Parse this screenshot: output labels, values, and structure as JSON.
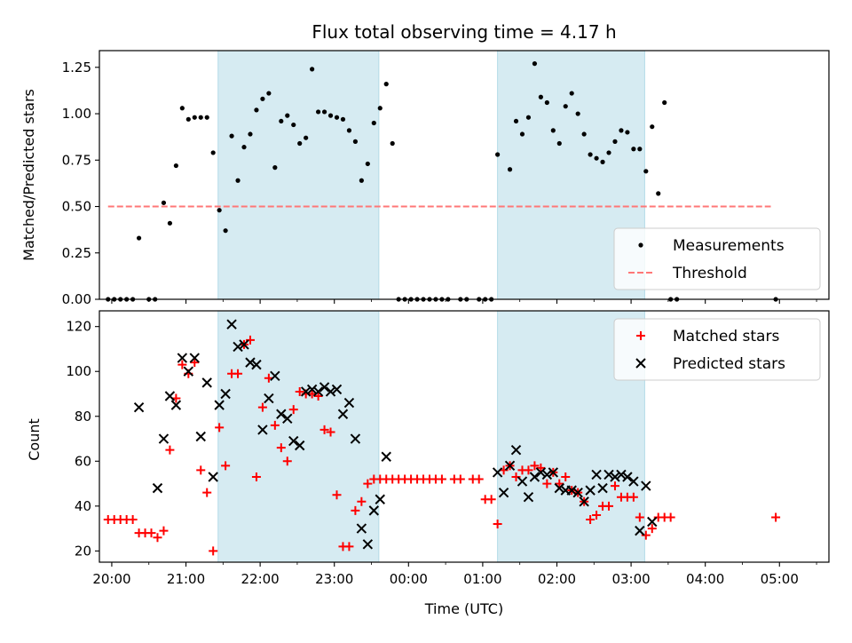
{
  "figure": {
    "title": "Flux total observing time = 4.17 h",
    "xlabel": "Time (UTC)"
  },
  "chart_data": [
    {
      "type": "scatter",
      "ylabel": "Matched/Predicted stars",
      "ylim": [
        0,
        1.34
      ],
      "yticks": [
        0.0,
        0.25,
        0.5,
        0.75,
        1.0,
        1.25
      ],
      "xlim": [
        "19:50",
        "05:40"
      ],
      "xticks": [
        "20:00",
        "21:00",
        "22:00",
        "23:00",
        "00:00",
        "01:00",
        "02:00",
        "03:00",
        "04:00",
        "05:00"
      ],
      "shaded_intervals": [
        [
          "21:26",
          "23:36"
        ],
        [
          "01:12",
          "03:11"
        ]
      ],
      "threshold": {
        "name": "Threshold",
        "value": 0.5,
        "x_range": [
          "19:57",
          "04:53"
        ],
        "color": "#ff7777"
      },
      "legend": {
        "position": "lower-right",
        "entries": [
          "Measurements",
          "Threshold"
        ]
      },
      "series": [
        {
          "name": "Measurements",
          "marker": "dot",
          "color": "#000000",
          "points": [
            [
              "19:57",
              0.0
            ],
            [
              "20:02",
              0.0
            ],
            [
              "20:07",
              0.0
            ],
            [
              "20:12",
              0.0
            ],
            [
              "20:17",
              0.0
            ],
            [
              "20:22",
              0.33
            ],
            [
              "20:30",
              0.0
            ],
            [
              "20:35",
              0.0
            ],
            [
              "20:42",
              0.52
            ],
            [
              "20:47",
              0.41
            ],
            [
              "20:52",
              0.72
            ],
            [
              "20:57",
              1.03
            ],
            [
              "21:02",
              0.97
            ],
            [
              "21:07",
              0.98
            ],
            [
              "21:12",
              0.98
            ],
            [
              "21:17",
              0.98
            ],
            [
              "21:22",
              0.79
            ],
            [
              "21:27",
              0.48
            ],
            [
              "21:32",
              0.37
            ],
            [
              "21:37",
              0.88
            ],
            [
              "21:42",
              0.64
            ],
            [
              "21:47",
              0.82
            ],
            [
              "21:52",
              0.89
            ],
            [
              "21:57",
              1.02
            ],
            [
              "22:02",
              1.08
            ],
            [
              "22:07",
              1.11
            ],
            [
              "22:12",
              0.71
            ],
            [
              "22:17",
              0.96
            ],
            [
              "22:22",
              0.99
            ],
            [
              "22:27",
              0.94
            ],
            [
              "22:32",
              0.84
            ],
            [
              "22:37",
              0.87
            ],
            [
              "22:42",
              1.24
            ],
            [
              "22:47",
              1.01
            ],
            [
              "22:52",
              1.01
            ],
            [
              "22:57",
              0.99
            ],
            [
              "23:02",
              0.98
            ],
            [
              "23:07",
              0.97
            ],
            [
              "23:12",
              0.91
            ],
            [
              "23:17",
              0.85
            ],
            [
              "23:22",
              0.64
            ],
            [
              "23:27",
              0.73
            ],
            [
              "23:32",
              0.95
            ],
            [
              "23:37",
              1.03
            ],
            [
              "23:42",
              1.16
            ],
            [
              "23:47",
              0.84
            ],
            [
              "23:52",
              0.0
            ],
            [
              "23:57",
              0.0
            ],
            [
              "00:02",
              0.0
            ],
            [
              "00:07",
              0.0
            ],
            [
              "00:12",
              0.0
            ],
            [
              "00:17",
              0.0
            ],
            [
              "00:22",
              0.0
            ],
            [
              "00:27",
              0.0
            ],
            [
              "00:32",
              0.0
            ],
            [
              "00:42",
              0.0
            ],
            [
              "00:47",
              0.0
            ],
            [
              "00:57",
              0.0
            ],
            [
              "01:02",
              0.0
            ],
            [
              "01:07",
              0.0
            ],
            [
              "01:12",
              0.78
            ],
            [
              "01:22",
              0.7
            ],
            [
              "01:27",
              0.96
            ],
            [
              "01:32",
              0.89
            ],
            [
              "01:37",
              0.98
            ],
            [
              "01:42",
              1.27
            ],
            [
              "01:47",
              1.09
            ],
            [
              "01:52",
              1.06
            ],
            [
              "01:57",
              0.91
            ],
            [
              "02:02",
              0.84
            ],
            [
              "02:07",
              1.04
            ],
            [
              "02:12",
              1.11
            ],
            [
              "02:17",
              1.0
            ],
            [
              "02:22",
              0.89
            ],
            [
              "02:27",
              0.78
            ],
            [
              "02:32",
              0.76
            ],
            [
              "02:37",
              0.74
            ],
            [
              "02:42",
              0.79
            ],
            [
              "02:47",
              0.85
            ],
            [
              "02:52",
              0.91
            ],
            [
              "02:57",
              0.9
            ],
            [
              "03:02",
              0.81
            ],
            [
              "03:07",
              0.81
            ],
            [
              "03:12",
              0.69
            ],
            [
              "03:17",
              0.93
            ],
            [
              "03:22",
              0.57
            ],
            [
              "03:27",
              1.06
            ],
            [
              "03:32",
              0.0
            ],
            [
              "03:37",
              0.0
            ],
            [
              "04:57",
              0.0
            ]
          ]
        }
      ]
    },
    {
      "type": "scatter",
      "ylabel": "Count",
      "ylim": [
        15,
        127
      ],
      "yticks": [
        20,
        40,
        60,
        80,
        100,
        120
      ],
      "xlim": [
        "19:50",
        "05:40"
      ],
      "xticks": [
        "20:00",
        "21:00",
        "22:00",
        "23:00",
        "00:00",
        "01:00",
        "02:00",
        "03:00",
        "04:00",
        "05:00"
      ],
      "shaded_intervals": [
        [
          "21:26",
          "23:36"
        ],
        [
          "01:12",
          "03:11"
        ]
      ],
      "legend": {
        "position": "upper-right",
        "entries": [
          "Matched stars",
          "Predicted stars"
        ]
      },
      "series": [
        {
          "name": "Matched stars",
          "marker": "plus",
          "color": "#ff0000",
          "points": [
            [
              "19:57",
              34
            ],
            [
              "20:02",
              34
            ],
            [
              "20:07",
              34
            ],
            [
              "20:12",
              34
            ],
            [
              "20:17",
              34
            ],
            [
              "20:22",
              28
            ],
            [
              "20:27",
              28
            ],
            [
              "20:32",
              28
            ],
            [
              "20:37",
              26
            ],
            [
              "20:42",
              29
            ],
            [
              "20:47",
              65
            ],
            [
              "20:52",
              88
            ],
            [
              "20:57",
              103
            ],
            [
              "21:02",
              99
            ],
            [
              "21:07",
              104
            ],
            [
              "21:12",
              56
            ],
            [
              "21:17",
              46
            ],
            [
              "21:22",
              20
            ],
            [
              "21:27",
              75
            ],
            [
              "21:32",
              58
            ],
            [
              "21:37",
              99
            ],
            [
              "21:42",
              99
            ],
            [
              "21:47",
              112
            ],
            [
              "21:52",
              114
            ],
            [
              "21:57",
              53
            ],
            [
              "22:02",
              84
            ],
            [
              "22:07",
              97
            ],
            [
              "22:12",
              76
            ],
            [
              "22:17",
              66
            ],
            [
              "22:22",
              60
            ],
            [
              "22:27",
              83
            ],
            [
              "22:32",
              91
            ],
            [
              "22:37",
              90
            ],
            [
              "22:42",
              90
            ],
            [
              "22:47",
              89
            ],
            [
              "22:52",
              74
            ],
            [
              "22:57",
              73
            ],
            [
              "23:02",
              45
            ],
            [
              "23:07",
              22
            ],
            [
              "23:12",
              22
            ],
            [
              "23:17",
              38
            ],
            [
              "23:22",
              42
            ],
            [
              "23:27",
              50
            ],
            [
              "23:32",
              52
            ],
            [
              "23:37",
              52
            ],
            [
              "23:42",
              52
            ],
            [
              "23:47",
              52
            ],
            [
              "23:52",
              52
            ],
            [
              "23:57",
              52
            ],
            [
              "00:02",
              52
            ],
            [
              "00:07",
              52
            ],
            [
              "00:12",
              52
            ],
            [
              "00:17",
              52
            ],
            [
              "00:22",
              52
            ],
            [
              "00:27",
              52
            ],
            [
              "00:37",
              52
            ],
            [
              "00:42",
              52
            ],
            [
              "00:52",
              52
            ],
            [
              "00:57",
              52
            ],
            [
              "01:02",
              43
            ],
            [
              "01:07",
              43
            ],
            [
              "01:12",
              32
            ],
            [
              "01:17",
              56
            ],
            [
              "01:22",
              58
            ],
            [
              "01:27",
              53
            ],
            [
              "01:32",
              56
            ],
            [
              "01:37",
              56
            ],
            [
              "01:42",
              58
            ],
            [
              "01:47",
              57
            ],
            [
              "01:52",
              50
            ],
            [
              "01:57",
              55
            ],
            [
              "02:02",
              50
            ],
            [
              "02:07",
              53
            ],
            [
              "02:12",
              47
            ],
            [
              "02:17",
              46
            ],
            [
              "02:22",
              42
            ],
            [
              "02:27",
              34
            ],
            [
              "02:32",
              36
            ],
            [
              "02:37",
              40
            ],
            [
              "02:42",
              40
            ],
            [
              "02:47",
              49
            ],
            [
              "02:52",
              44
            ],
            [
              "02:57",
              44
            ],
            [
              "03:02",
              44
            ],
            [
              "03:07",
              35
            ],
            [
              "03:12",
              27
            ],
            [
              "03:17",
              30
            ],
            [
              "03:22",
              35
            ],
            [
              "03:27",
              35
            ],
            [
              "03:32",
              35
            ],
            [
              "04:57",
              35
            ]
          ]
        },
        {
          "name": "Predicted stars",
          "marker": "x",
          "color": "#000000",
          "points": [
            [
              "20:22",
              84
            ],
            [
              "20:37",
              48
            ],
            [
              "20:42",
              70
            ],
            [
              "20:47",
              89
            ],
            [
              "20:52",
              85
            ],
            [
              "20:57",
              106
            ],
            [
              "21:02",
              100
            ],
            [
              "21:07",
              106
            ],
            [
              "21:12",
              71
            ],
            [
              "21:17",
              95
            ],
            [
              "21:22",
              53
            ],
            [
              "21:27",
              85
            ],
            [
              "21:32",
              90
            ],
            [
              "21:37",
              121
            ],
            [
              "21:42",
              111
            ],
            [
              "21:47",
              112
            ],
            [
              "21:52",
              104
            ],
            [
              "21:57",
              103
            ],
            [
              "22:02",
              74
            ],
            [
              "22:07",
              88
            ],
            [
              "22:12",
              98
            ],
            [
              "22:17",
              81
            ],
            [
              "22:22",
              79
            ],
            [
              "22:27",
              69
            ],
            [
              "22:32",
              67
            ],
            [
              "22:37",
              91
            ],
            [
              "22:42",
              92
            ],
            [
              "22:47",
              91
            ],
            [
              "22:52",
              93
            ],
            [
              "22:57",
              91
            ],
            [
              "23:02",
              92
            ],
            [
              "23:07",
              81
            ],
            [
              "23:12",
              86
            ],
            [
              "23:17",
              70
            ],
            [
              "23:22",
              30
            ],
            [
              "23:27",
              23
            ],
            [
              "23:32",
              38
            ],
            [
              "23:37",
              43
            ],
            [
              "23:42",
              62
            ],
            [
              "01:12",
              55
            ],
            [
              "01:17",
              46
            ],
            [
              "01:22",
              58
            ],
            [
              "01:27",
              65
            ],
            [
              "01:32",
              51
            ],
            [
              "01:37",
              44
            ],
            [
              "01:42",
              53
            ],
            [
              "01:47",
              55
            ],
            [
              "01:52",
              54
            ],
            [
              "01:57",
              55
            ],
            [
              "02:02",
              48
            ],
            [
              "02:07",
              47
            ],
            [
              "02:12",
              47
            ],
            [
              "02:17",
              46
            ],
            [
              "02:22",
              42
            ],
            [
              "02:27",
              47
            ],
            [
              "02:32",
              54
            ],
            [
              "02:37",
              48
            ],
            [
              "02:42",
              54
            ],
            [
              "02:47",
              53
            ],
            [
              "02:52",
              54
            ],
            [
              "02:57",
              53
            ],
            [
              "03:02",
              51
            ],
            [
              "03:07",
              29
            ],
            [
              "03:12",
              49
            ],
            [
              "03:17",
              33
            ]
          ]
        }
      ]
    }
  ]
}
